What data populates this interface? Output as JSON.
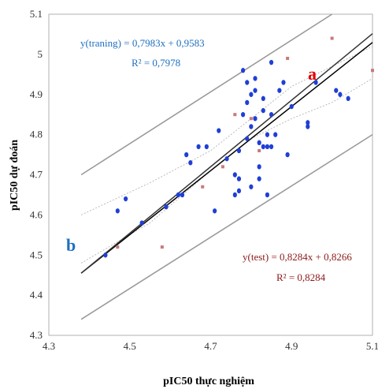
{
  "chart_data": {
    "type": "scatter",
    "xlabel": "pIC50 thực nghiệm",
    "ylabel": "pIC50 dự đoán",
    "xlim": [
      4.3,
      5.1
    ],
    "ylim": [
      4.3,
      5.1
    ],
    "x_ticks": [
      "4.3",
      "4.5",
      "4.7",
      "4.9",
      "5.1"
    ],
    "y_ticks": [
      "4.3",
      "4.4",
      "4.5",
      "4.6",
      "4.7",
      "4.8",
      "4.9",
      "5"
    ],
    "grid": false,
    "series": [
      {
        "name": "training",
        "color": "#1f3fd6",
        "marker": "circle",
        "points": [
          [
            4.44,
            4.5
          ],
          [
            4.47,
            4.61
          ],
          [
            4.49,
            4.64
          ],
          [
            4.53,
            4.58
          ],
          [
            4.59,
            4.62
          ],
          [
            4.62,
            4.65
          ],
          [
            4.63,
            4.65
          ],
          [
            4.64,
            4.75
          ],
          [
            4.65,
            4.73
          ],
          [
            4.67,
            4.77
          ],
          [
            4.69,
            4.77
          ],
          [
            4.71,
            4.61
          ],
          [
            4.72,
            4.81
          ],
          [
            4.74,
            4.74
          ],
          [
            4.76,
            4.65
          ],
          [
            4.76,
            4.7
          ],
          [
            4.77,
            4.66
          ],
          [
            4.77,
            4.69
          ],
          [
            4.77,
            4.76
          ],
          [
            4.78,
            4.96
          ],
          [
            4.78,
            4.85
          ],
          [
            4.79,
            4.88
          ],
          [
            4.79,
            4.79
          ],
          [
            4.8,
            4.67
          ],
          [
            4.8,
            4.82
          ],
          [
            4.8,
            4.9
          ],
          [
            4.81,
            4.84
          ],
          [
            4.81,
            4.91
          ],
          [
            4.81,
            4.94
          ],
          [
            4.82,
            4.78
          ],
          [
            4.82,
            4.72
          ],
          [
            4.82,
            4.69
          ],
          [
            4.83,
            4.89
          ],
          [
            4.83,
            4.77
          ],
          [
            4.83,
            4.86
          ],
          [
            4.84,
            4.8
          ],
          [
            4.84,
            4.77
          ],
          [
            4.84,
            4.65
          ],
          [
            4.85,
            4.85
          ],
          [
            4.85,
            4.98
          ],
          [
            4.86,
            4.8
          ],
          [
            4.87,
            4.91
          ],
          [
            4.88,
            4.93
          ],
          [
            4.89,
            4.75
          ],
          [
            4.9,
            4.87
          ],
          [
            4.94,
            4.82
          ],
          [
            4.94,
            4.83
          ],
          [
            4.96,
            4.93
          ],
          [
            5.01,
            4.91
          ],
          [
            5.02,
            4.9
          ],
          [
            5.04,
            4.89
          ],
          [
            4.85,
            4.77
          ],
          [
            4.79,
            4.93
          ]
        ]
      },
      {
        "name": "test",
        "color": "#c87a7a",
        "marker": "square",
        "points": [
          [
            4.47,
            4.52
          ],
          [
            4.58,
            4.52
          ],
          [
            4.68,
            4.67
          ],
          [
            4.73,
            4.72
          ],
          [
            4.76,
            4.85
          ],
          [
            4.8,
            4.82
          ],
          [
            4.82,
            4.76
          ],
          [
            4.83,
            4.77
          ],
          [
            4.89,
            4.99
          ],
          [
            5.0,
            5.04
          ],
          [
            5.1,
            4.96
          ],
          [
            4.8,
            4.84
          ]
        ]
      }
    ],
    "regression_lines": [
      {
        "label": "training fit",
        "slope": 0.7983,
        "intercept": 0.9583,
        "x_range": [
          4.38,
          5.1
        ],
        "color": "#000000"
      },
      {
        "label": "test fit",
        "slope": 0.8284,
        "intercept": 0.8266,
        "x_range": [
          4.38,
          5.1
        ],
        "color": "#333333"
      }
    ],
    "prediction_bounds": {
      "color": "#9a9a9a",
      "upper": [
        [
          4.38,
          4.7
        ],
        [
          5.0,
          5.1
        ]
      ],
      "lower": [
        [
          4.38,
          4.34
        ],
        [
          5.1,
          4.8
        ]
      ]
    },
    "confidence_band": {
      "color": "#bbbbbb",
      "upper": [
        [
          4.38,
          4.6
        ],
        [
          4.55,
          4.68
        ],
        [
          4.7,
          4.76
        ],
        [
          4.8,
          4.84
        ],
        [
          4.9,
          4.92
        ],
        [
          5.0,
          4.97
        ],
        [
          5.1,
          5.02
        ]
      ],
      "lower": [
        [
          4.38,
          4.48
        ],
        [
          4.55,
          4.58
        ],
        [
          4.7,
          4.71
        ],
        [
          4.8,
          4.79
        ],
        [
          4.9,
          4.84
        ],
        [
          5.0,
          4.88
        ],
        [
          5.1,
          4.94
        ]
      ]
    },
    "annotations": {
      "train_equation": "y(traning) = 0,7983x + 0,9583",
      "train_r2": "R² = 0,7978",
      "test_equation": "y(test) = 0,8284x + 0,8266",
      "test_r2": "R² = 0,8284",
      "label_a": "a",
      "label_b": "b",
      "train_color": "#1f6fbf",
      "test_color": "#8b1a1a",
      "label_a_color": "#e00000",
      "label_b_color": "#1f6fbf"
    }
  }
}
